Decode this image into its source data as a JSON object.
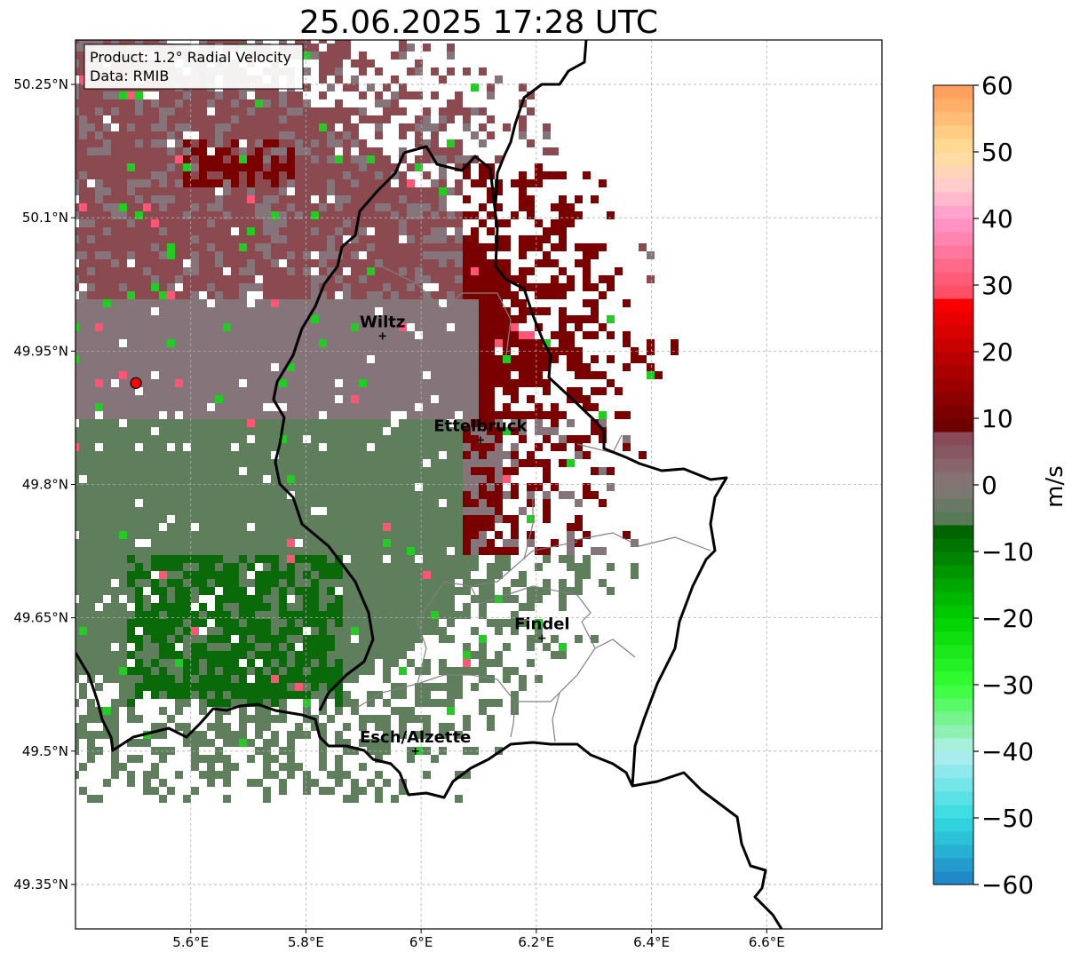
{
  "title": "25.06.2025 17:28 UTC",
  "info_box": {
    "line1": "Product: 1.2° Radial Velocity",
    "line2": "Data: RMIB"
  },
  "map": {
    "lon_range": [
      5.4,
      6.8
    ],
    "lat_range": [
      49.3,
      50.3
    ],
    "x_ticks": [
      {
        "value": 5.6,
        "label": "5.6°E"
      },
      {
        "value": 5.8,
        "label": "5.8°E"
      },
      {
        "value": 6.0,
        "label": "6°E"
      },
      {
        "value": 6.2,
        "label": "6.2°E"
      },
      {
        "value": 6.4,
        "label": "6.4°E"
      },
      {
        "value": 6.6,
        "label": "6.6°E"
      }
    ],
    "y_ticks": [
      {
        "value": 50.25,
        "label": "50.25°N"
      },
      {
        "value": 50.1,
        "label": "50.1°N"
      },
      {
        "value": 49.95,
        "label": "49.95°N"
      },
      {
        "value": 49.8,
        "label": "49.8°N"
      },
      {
        "value": 49.65,
        "label": "49.65°N"
      },
      {
        "value": 49.5,
        "label": "49.5°N"
      },
      {
        "value": 49.35,
        "label": "49.35°N"
      }
    ],
    "cities": [
      {
        "name": "Wiltz",
        "lon": 5.933,
        "lat": 49.967
      },
      {
        "name": "Ettelbruck",
        "lon": 6.103,
        "lat": 49.85
      },
      {
        "name": "Findel",
        "lon": 6.21,
        "lat": 49.627
      },
      {
        "name": "Esch/Alzette",
        "lon": 5.99,
        "lat": 49.5
      }
    ],
    "radar_site": {
      "lon": 5.505,
      "lat": 49.914,
      "color": "#ff0000"
    },
    "colors": {
      "outbound_dark": "#7a0000",
      "outbound_light": "#8a4a50",
      "near_zero": "#85747a",
      "inbound_light": "#5e7e5c",
      "inbound_dark": "#0a6a0a",
      "border": "#000000",
      "district_border": "#808080"
    }
  },
  "colorbar": {
    "label": "m/s",
    "min": -60,
    "max": 60,
    "ticks": [
      {
        "value": 60,
        "label": "60"
      },
      {
        "value": 50,
        "label": "50"
      },
      {
        "value": 40,
        "label": "40"
      },
      {
        "value": 30,
        "label": "30"
      },
      {
        "value": 20,
        "label": "20"
      },
      {
        "value": 10,
        "label": "10"
      },
      {
        "value": 0,
        "label": "0"
      },
      {
        "value": -10,
        "label": "−10"
      },
      {
        "value": -20,
        "label": "−20"
      },
      {
        "value": -30,
        "label": "−30"
      },
      {
        "value": -40,
        "label": "−40"
      },
      {
        "value": -50,
        "label": "−50"
      },
      {
        "value": -60,
        "label": "−60"
      }
    ],
    "stops": [
      {
        "value": -60,
        "color": "#1f7fc4"
      },
      {
        "value": -55,
        "color": "#26b0d3"
      },
      {
        "value": -50,
        "color": "#33dce0"
      },
      {
        "value": -40,
        "color": "#b4eef0"
      },
      {
        "value": -37,
        "color": "#8ff0b4"
      },
      {
        "value": -30,
        "color": "#33ff33"
      },
      {
        "value": -20,
        "color": "#00d000"
      },
      {
        "value": -7,
        "color": "#006400"
      },
      {
        "value": -6,
        "color": "#4f7a4f"
      },
      {
        "value": 0,
        "color": "#857878"
      },
      {
        "value": 8,
        "color": "#8a4455"
      },
      {
        "value": 9,
        "color": "#6e0000"
      },
      {
        "value": 28,
        "color": "#ff0000"
      },
      {
        "value": 29,
        "color": "#ff4f66"
      },
      {
        "value": 40,
        "color": "#ff99cc"
      },
      {
        "value": 45,
        "color": "#ffcccc"
      },
      {
        "value": 50,
        "color": "#ffe099"
      },
      {
        "value": 60,
        "color": "#ff9a55"
      }
    ]
  }
}
